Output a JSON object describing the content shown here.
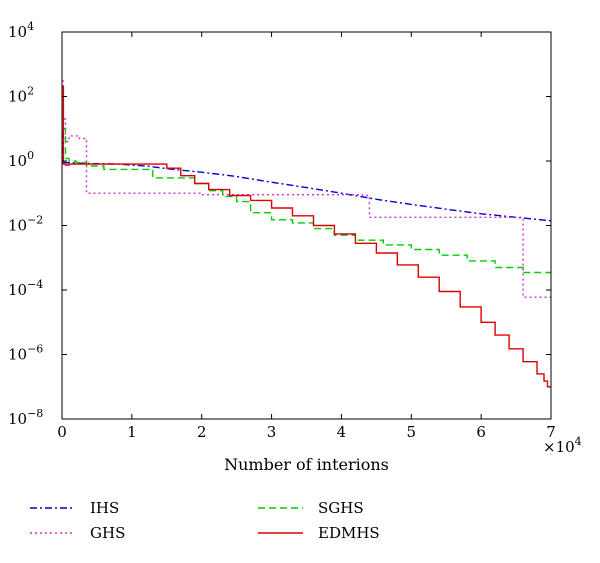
{
  "chart_data": {
    "type": "line",
    "xlabel": "Number of interions",
    "x_multiplier": "×10⁴",
    "xlim": [
      0,
      7
    ],
    "ylim": [
      1e-08,
      10000.0
    ],
    "yscale": "log",
    "x_ticks": [
      0,
      1,
      2,
      3,
      4,
      5,
      6,
      7
    ],
    "y_ticks": [
      {
        "value": 10000.0,
        "base": "10",
        "exp": "4"
      },
      {
        "value": 100.0,
        "base": "10",
        "exp": "2"
      },
      {
        "value": 1.0,
        "base": "10",
        "exp": "0"
      },
      {
        "value": 0.01,
        "base": "10",
        "exp": "−2"
      },
      {
        "value": 0.0001,
        "base": "10",
        "exp": "−4"
      },
      {
        "value": 1e-06,
        "base": "10",
        "exp": "−6"
      },
      {
        "value": 1e-08,
        "base": "10",
        "exp": "−8"
      }
    ],
    "grid": false,
    "legend_position": "bottom",
    "series": [
      {
        "name": "IHS",
        "color": "#0000cc",
        "dash": "dash-dot",
        "step": false,
        "x": [
          0,
          0.02,
          0.3,
          0.8,
          1.2,
          1.6,
          2.0,
          2.5,
          3.0,
          3.5,
          4.0,
          4.5,
          5.0,
          5.5,
          6.0,
          6.5,
          7.0
        ],
        "y": [
          8,
          0.9,
          0.85,
          0.8,
          0.7,
          0.55,
          0.45,
          0.33,
          0.22,
          0.15,
          0.1,
          0.065,
          0.045,
          0.032,
          0.023,
          0.018,
          0.014
        ]
      },
      {
        "name": "GHS",
        "color": "#cc33cc",
        "dash": "dot",
        "step": true,
        "x": [
          0,
          0.02,
          0.05,
          0.1,
          0.25,
          0.35,
          1.0,
          2.0,
          4.3,
          4.4,
          6.55,
          6.6,
          7.0
        ],
        "y": [
          300,
          20,
          4,
          6,
          5,
          0.1,
          0.1,
          0.09,
          0.085,
          0.018,
          0.018,
          6e-05,
          6e-05
        ]
      },
      {
        "name": "SGHS",
        "color": "#00cc00",
        "dash": "dash",
        "step": true,
        "x": [
          0,
          0.05,
          0.1,
          0.2,
          0.35,
          0.6,
          1.0,
          1.2,
          1.3,
          1.6,
          1.9,
          2.1,
          2.3,
          2.5,
          2.7,
          3.0,
          3.3,
          3.6,
          3.9,
          4.2,
          4.6,
          5.0,
          5.4,
          5.8,
          6.2,
          6.6,
          7.0
        ],
        "y": [
          10,
          1.2,
          1.0,
          0.9,
          0.7,
          0.55,
          0.55,
          0.55,
          0.3,
          0.3,
          0.2,
          0.12,
          0.08,
          0.055,
          0.025,
          0.015,
          0.012,
          0.008,
          0.005,
          0.0035,
          0.0025,
          0.0018,
          0.0012,
          0.0008,
          0.0005,
          0.00035,
          0.00025
        ]
      },
      {
        "name": "EDMHS",
        "color": "#dd0000",
        "dash": "solid",
        "step": true,
        "x": [
          0,
          0.02,
          0.05,
          0.1,
          0.5,
          1.0,
          1.5,
          1.7,
          1.9,
          2.1,
          2.4,
          2.7,
          3.0,
          3.3,
          3.6,
          3.9,
          4.2,
          4.5,
          4.8,
          5.1,
          5.4,
          5.7,
          6.0,
          6.2,
          6.4,
          6.6,
          6.8,
          6.9,
          6.95,
          7.0
        ],
        "y": [
          200,
          0.8,
          0.75,
          0.8,
          0.8,
          0.8,
          0.6,
          0.35,
          0.2,
          0.13,
          0.085,
          0.06,
          0.035,
          0.02,
          0.01,
          0.0055,
          0.0028,
          0.0014,
          0.0006,
          0.00025,
          9e-05,
          3e-05,
          1e-05,
          4e-06,
          1.5e-06,
          6e-07,
          2.5e-07,
          1.5e-07,
          1e-07,
          1e-07
        ]
      }
    ]
  }
}
